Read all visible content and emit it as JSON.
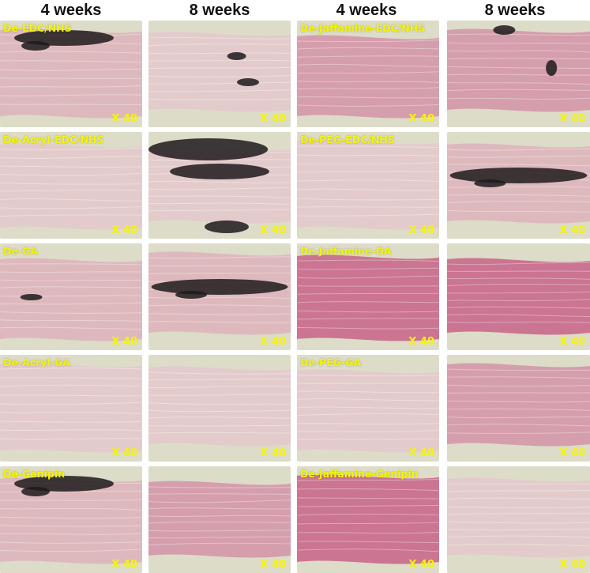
{
  "columns": [
    "4 weeks",
    "8 weeks",
    "4 weeks",
    "8 weeks"
  ],
  "magnification": "X 40",
  "panels": [
    {
      "label": "De-EDC/NHS",
      "tone": "light",
      "dark": "top"
    },
    {
      "label": "",
      "tone": "pale",
      "dark": "spots"
    },
    {
      "label": "De-Jaffamine-EDC/NHS",
      "tone": "pink",
      "dark": "none"
    },
    {
      "label": "",
      "tone": "pink",
      "dark": "corner"
    },
    {
      "label": "De-Acryl-EDC/NHS",
      "tone": "pale",
      "dark": "none"
    },
    {
      "label": "",
      "tone": "pale",
      "dark": "heavy"
    },
    {
      "label": "De-PEG-EDC/NHS",
      "tone": "pale",
      "dark": "none"
    },
    {
      "label": "",
      "tone": "light",
      "dark": "band"
    },
    {
      "label": "De-GA",
      "tone": "light",
      "dark": "small"
    },
    {
      "label": "",
      "tone": "light",
      "dark": "band"
    },
    {
      "label": "De-Jaffamine-GA",
      "tone": "deep",
      "dark": "none"
    },
    {
      "label": "",
      "tone": "deep",
      "dark": "none"
    },
    {
      "label": "De-Acryl-GA",
      "tone": "pale",
      "dark": "none"
    },
    {
      "label": "",
      "tone": "pale",
      "dark": "none"
    },
    {
      "label": "De-PEG-GA",
      "tone": "pale",
      "dark": "none"
    },
    {
      "label": "",
      "tone": "pink",
      "dark": "none"
    },
    {
      "label": "De-Genipin",
      "tone": "light",
      "dark": "top"
    },
    {
      "label": "",
      "tone": "pink",
      "dark": "none"
    },
    {
      "label": "De-Jaffamine-Genipin",
      "tone": "deep",
      "dark": "none"
    },
    {
      "label": "",
      "tone": "pale",
      "dark": "none"
    }
  ],
  "colors": {
    "background": "#dcdcc8",
    "tissue_pale": "#e3c9cc",
    "tissue_light": "#dcb6bd",
    "tissue_pink": "#d49aac",
    "tissue_deep": "#c96f8f",
    "stain_dark": "#1e1a1c",
    "label_yellow": "#f5f500"
  }
}
